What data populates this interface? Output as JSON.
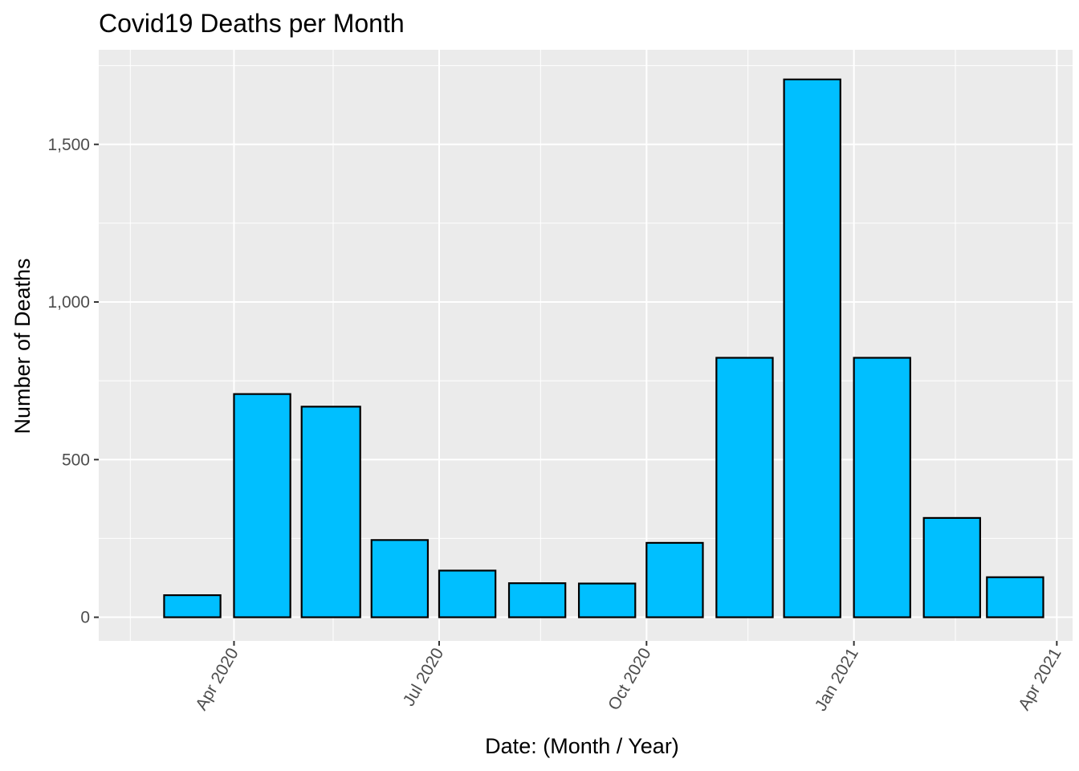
{
  "chart_data": {
    "type": "bar",
    "title": "Covid19 Deaths per Month",
    "xlabel": "Date: (Month / Year)",
    "ylabel": "Number of Deaths",
    "ylim": [
      -75,
      1800
    ],
    "xlim": [
      "2020-02-01",
      "2021-04-08"
    ],
    "y_ticks": [
      0,
      500,
      1000,
      1500
    ],
    "y_tick_labels": [
      "0",
      "500",
      "1,000",
      "1,500"
    ],
    "x_ticks": [
      "2020-04-01",
      "2020-07-01",
      "2020-10-01",
      "2021-01-01",
      "2021-04-01"
    ],
    "x_tick_labels": [
      "Apr 2020",
      "Jul 2020",
      "Oct 2020",
      "Jan 2021",
      "Apr 2021"
    ],
    "x_minor_ticks": [
      "2020-02-15",
      "2020-05-15",
      "2020-08-15",
      "2020-11-15",
      "2021-02-15"
    ],
    "grid": true,
    "bar_fill": "#00bfff",
    "bar_stroke": "#000000",
    "panel_background": "#ebebeb",
    "bars": [
      {
        "x_start": "2020-03-01",
        "x_end": "2020-03-26",
        "value": 70
      },
      {
        "x_start": "2020-04-01",
        "x_end": "2020-04-26",
        "value": 708
      },
      {
        "x_start": "2020-05-01",
        "x_end": "2020-05-27",
        "value": 668
      },
      {
        "x_start": "2020-06-01",
        "x_end": "2020-06-26",
        "value": 245
      },
      {
        "x_start": "2020-07-01",
        "x_end": "2020-07-26",
        "value": 148
      },
      {
        "x_start": "2020-08-01",
        "x_end": "2020-08-26",
        "value": 108
      },
      {
        "x_start": "2020-09-01",
        "x_end": "2020-09-26",
        "value": 107
      },
      {
        "x_start": "2020-10-01",
        "x_end": "2020-10-26",
        "value": 236
      },
      {
        "x_start": "2020-11-01",
        "x_end": "2020-11-26",
        "value": 823
      },
      {
        "x_start": "2020-12-01",
        "x_end": "2020-12-26",
        "value": 1706
      },
      {
        "x_start": "2021-01-01",
        "x_end": "2021-01-26",
        "value": 823
      },
      {
        "x_start": "2021-02-01",
        "x_end": "2021-02-26",
        "value": 315
      },
      {
        "x_start": "2021-03-01",
        "x_end": "2021-03-26",
        "value": 127
      }
    ]
  }
}
